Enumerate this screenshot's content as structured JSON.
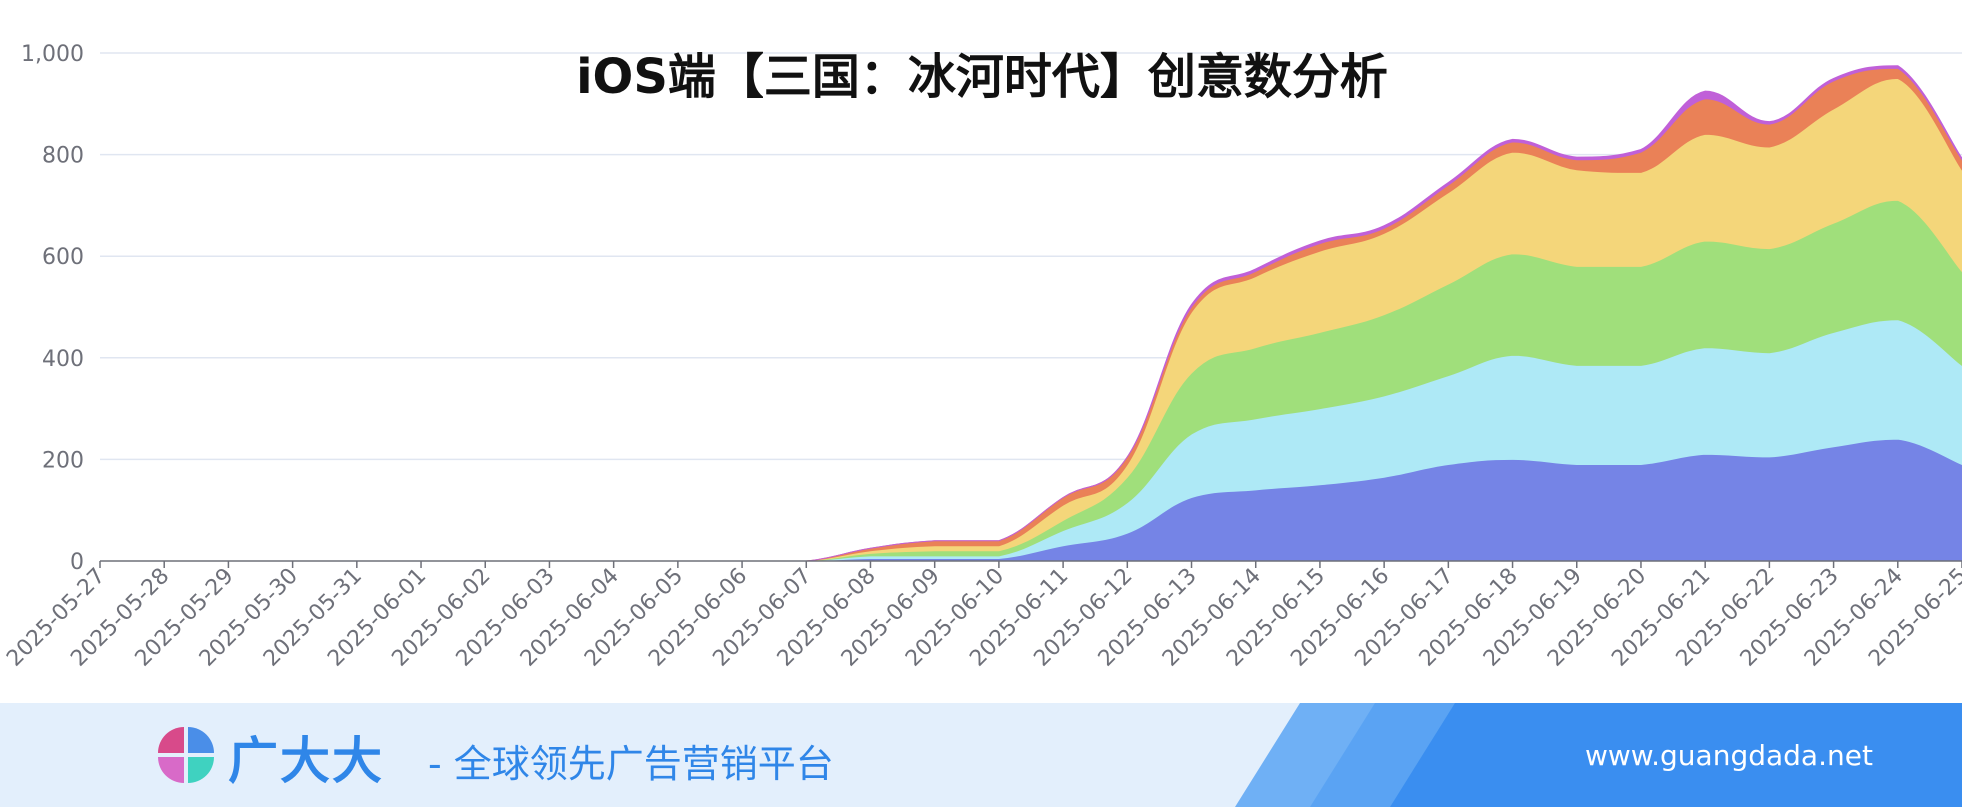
{
  "chart_data": {
    "type": "area",
    "stacked": true,
    "smooth": true,
    "title": "iOS端【三国：冰河时代】创意数分析",
    "ylim": [
      0,
      1000
    ],
    "yticks": [
      0,
      200,
      400,
      600,
      800,
      1000
    ],
    "ytick_labels": [
      "0",
      "200",
      "400",
      "600",
      "800",
      "1,000"
    ],
    "grid": true,
    "x": [
      "2025-05-27",
      "2025-05-28",
      "2025-05-29",
      "2025-05-30",
      "2025-05-31",
      "2025-06-01",
      "2025-06-02",
      "2025-06-03",
      "2025-06-04",
      "2025-06-05",
      "2025-06-06",
      "2025-06-07",
      "2025-06-08",
      "2025-06-09",
      "2025-06-10",
      "2025-06-11",
      "2025-06-12",
      "2025-06-13",
      "2025-06-14",
      "2025-06-15",
      "2025-06-16",
      "2025-06-17",
      "2025-06-18",
      "2025-06-19",
      "2025-06-20",
      "2025-06-21",
      "2025-06-22",
      "2025-06-23",
      "2025-06-24",
      "2025-06-25"
    ],
    "series": [
      {
        "color": "#7584e6",
        "values": [
          0,
          0,
          0,
          0,
          0,
          0,
          0,
          0,
          0,
          0,
          0,
          0,
          5,
          5,
          5,
          30,
          55,
          125,
          140,
          150,
          165,
          190,
          200,
          190,
          190,
          210,
          205,
          225,
          240,
          190
        ]
      },
      {
        "color": "#aee9f6",
        "values": [
          0,
          0,
          0,
          0,
          0,
          0,
          0,
          0,
          0,
          0,
          0,
          0,
          5,
          5,
          5,
          30,
          60,
          125,
          140,
          150,
          160,
          175,
          205,
          195,
          195,
          210,
          205,
          225,
          235,
          195
        ]
      },
      {
        "color": "#a0df7b",
        "values": [
          0,
          0,
          0,
          0,
          0,
          0,
          0,
          0,
          0,
          0,
          0,
          0,
          5,
          10,
          10,
          20,
          50,
          120,
          140,
          150,
          160,
          180,
          200,
          195,
          195,
          210,
          205,
          215,
          235,
          185
        ]
      },
      {
        "color": "#f4d67a",
        "values": [
          0,
          0,
          0,
          0,
          0,
          0,
          0,
          0,
          0,
          0,
          0,
          0,
          5,
          10,
          10,
          30,
          25,
          120,
          140,
          160,
          160,
          180,
          200,
          190,
          185,
          210,
          200,
          225,
          240,
          200
        ]
      },
      {
        "color": "#ea8157",
        "values": [
          0,
          0,
          0,
          0,
          0,
          0,
          0,
          0,
          0,
          0,
          0,
          0,
          5,
          10,
          10,
          15,
          15,
          10,
          10,
          15,
          10,
          15,
          20,
          20,
          40,
          70,
          45,
          55,
          20,
          20
        ]
      },
      {
        "color": "#c060d8",
        "values": [
          0,
          0,
          0,
          0,
          0,
          0,
          0,
          0,
          0,
          0,
          0,
          0,
          0,
          0,
          0,
          0,
          0,
          5,
          5,
          5,
          5,
          5,
          5,
          5,
          5,
          15,
          5,
          5,
          5,
          3
        ]
      }
    ]
  },
  "banner": {
    "brand_name": "广大大",
    "tagline": "- 全球领先广告营销平台",
    "url": "www.guangdada.net"
  }
}
